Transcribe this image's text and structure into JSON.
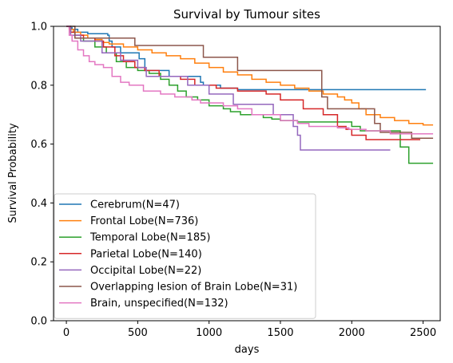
{
  "chart_data": {
    "type": "line",
    "title": "Survival by Tumour sites",
    "xlabel": "days",
    "ylabel": "Survival Probability",
    "xlim": [
      -90,
      2620
    ],
    "ylim": [
      0.0,
      1.0
    ],
    "x_ticks": [
      0,
      500,
      1000,
      1500,
      2000,
      2500
    ],
    "y_ticks": [
      0.0,
      0.2,
      0.4,
      0.6,
      0.8,
      1.0
    ],
    "x_tick_labels": [
      "0",
      "500",
      "1000",
      "1500",
      "2000",
      "2500"
    ],
    "y_tick_labels": [
      "0.0",
      "0.2",
      "0.4",
      "0.6",
      "0.8",
      "1.0"
    ],
    "grid": false,
    "legend_position": "lower-left",
    "series": [
      {
        "name": "Cerebrum(N=47)",
        "color": "#1f77b4",
        "x": [
          0,
          20,
          40,
          80,
          150,
          290,
          300,
          320,
          380,
          510,
          550,
          720,
          940,
          960,
          1080,
          1200,
          2520
        ],
        "y": [
          1.0,
          0.995,
          0.99,
          0.98,
          0.975,
          0.97,
          0.95,
          0.93,
          0.91,
          0.89,
          0.85,
          0.83,
          0.81,
          0.8,
          0.79,
          0.785,
          0.785
        ]
      },
      {
        "name": "Frontal Lobe(N=736)",
        "color": "#ff7f0e",
        "x": [
          0,
          20,
          50,
          100,
          150,
          200,
          250,
          300,
          400,
          500,
          600,
          700,
          800,
          900,
          1000,
          1100,
          1200,
          1300,
          1400,
          1500,
          1600,
          1700,
          1800,
          1900,
          1950,
          2000,
          2050,
          2100,
          2200,
          2300,
          2400,
          2500,
          2570
        ],
        "y": [
          1.0,
          0.99,
          0.98,
          0.97,
          0.96,
          0.955,
          0.945,
          0.94,
          0.93,
          0.92,
          0.91,
          0.9,
          0.89,
          0.875,
          0.86,
          0.845,
          0.835,
          0.82,
          0.81,
          0.8,
          0.79,
          0.78,
          0.77,
          0.76,
          0.75,
          0.74,
          0.72,
          0.7,
          0.69,
          0.68,
          0.67,
          0.665,
          0.665
        ]
      },
      {
        "name": "Temporal Lobe(N=185)",
        "color": "#2ca02c",
        "x": [
          0,
          30,
          60,
          120,
          200,
          280,
          350,
          420,
          500,
          580,
          660,
          720,
          780,
          840,
          920,
          1000,
          1100,
          1150,
          1220,
          1380,
          1440,
          1500,
          1620,
          2000,
          2060,
          2160,
          2340,
          2400,
          2570
        ],
        "y": [
          1.0,
          0.98,
          0.96,
          0.95,
          0.93,
          0.91,
          0.88,
          0.86,
          0.85,
          0.84,
          0.82,
          0.8,
          0.78,
          0.76,
          0.75,
          0.73,
          0.72,
          0.71,
          0.7,
          0.69,
          0.685,
          0.68,
          0.675,
          0.66,
          0.645,
          0.645,
          0.59,
          0.535,
          0.535
        ]
      },
      {
        "name": "Parietal Lobe(N=140)",
        "color": "#d62728",
        "x": [
          0,
          30,
          60,
          120,
          200,
          260,
          340,
          400,
          480,
          550,
          650,
          800,
          900,
          1050,
          1200,
          1400,
          1500,
          1660,
          1800,
          1900,
          1960,
          2000,
          2100,
          2280,
          2480
        ],
        "y": [
          1.0,
          0.98,
          0.97,
          0.96,
          0.95,
          0.93,
          0.9,
          0.88,
          0.86,
          0.85,
          0.83,
          0.82,
          0.8,
          0.79,
          0.78,
          0.77,
          0.75,
          0.72,
          0.7,
          0.66,
          0.65,
          0.63,
          0.615,
          0.615,
          0.615
        ]
      },
      {
        "name": "Occipital Lobe(N=22)",
        "color": "#9467bd",
        "x": [
          0,
          30,
          100,
          250,
          380,
          500,
          560,
          850,
          1000,
          1170,
          1450,
          1590,
          1620,
          1640,
          2270
        ],
        "y": [
          1.0,
          0.97,
          0.95,
          0.91,
          0.885,
          0.86,
          0.83,
          0.8,
          0.77,
          0.735,
          0.7,
          0.66,
          0.63,
          0.58,
          0.58
        ]
      },
      {
        "name": "Overlapping lesion of Brain Lobe(N=31)",
        "color": "#8c564b",
        "x": [
          0,
          60,
          390,
          480,
          960,
          1200,
          1790,
          1830,
          2020,
          2130,
          2160,
          2200,
          2420,
          2570
        ],
        "y": [
          1.0,
          0.96,
          0.96,
          0.935,
          0.895,
          0.85,
          0.76,
          0.72,
          0.72,
          0.72,
          0.67,
          0.64,
          0.62,
          0.62
        ]
      },
      {
        "name": "Brain, unspecified(N=132)",
        "color": "#e377c2",
        "x": [
          0,
          20,
          40,
          80,
          120,
          160,
          200,
          260,
          320,
          380,
          440,
          540,
          660,
          760,
          880,
          940,
          1100,
          1200,
          1300,
          1500,
          1620,
          1700,
          1900,
          1980,
          2100,
          2270,
          2570
        ],
        "y": [
          1.0,
          0.97,
          0.95,
          0.92,
          0.9,
          0.88,
          0.87,
          0.86,
          0.83,
          0.81,
          0.8,
          0.78,
          0.77,
          0.76,
          0.75,
          0.74,
          0.73,
          0.72,
          0.7,
          0.68,
          0.67,
          0.66,
          0.655,
          0.65,
          0.645,
          0.635,
          0.635
        ]
      }
    ]
  }
}
